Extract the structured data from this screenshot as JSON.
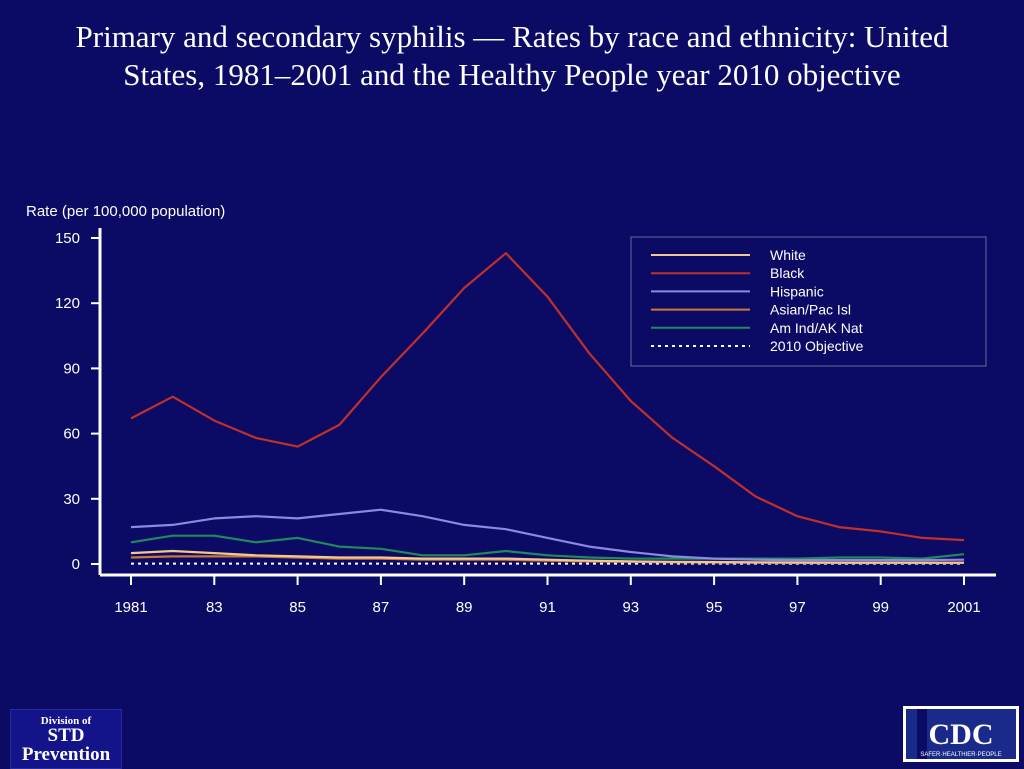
{
  "title": "Primary and secondary syphilis — Rates by race and ethnicity: United States, 1981–2001 and the Healthy People year 2010 objective",
  "logos": {
    "left": [
      "Division of",
      "STD",
      "Prevention"
    ],
    "right": "CDC",
    "right_tagline": "SAFER·HEALTHIER·PEOPLE"
  },
  "colors": {
    "background": "#0b0b66",
    "White": "#f2c890",
    "Black": "#c0302a",
    "Hispanic": "#8a8ae0",
    "Asian/Pac Isl": "#c87838",
    "Am Ind/AK Nat": "#1f8a5a",
    "2010 Objective": "#ffffff"
  },
  "chart_data": {
    "type": "line",
    "title": "",
    "xlabel": "",
    "ylabel": "Rate (per 100,000 population)",
    "x": [
      1981,
      1982,
      1983,
      1984,
      1985,
      1986,
      1987,
      1988,
      1989,
      1990,
      1991,
      1992,
      1993,
      1994,
      1995,
      1996,
      1997,
      1998,
      1999,
      2000,
      2001
    ],
    "x_tick_values": [
      1981,
      1983,
      1985,
      1987,
      1989,
      1991,
      1993,
      1995,
      1997,
      1999,
      2001
    ],
    "x_tick_labels": [
      "1981",
      "83",
      "85",
      "87",
      "89",
      "91",
      "93",
      "95",
      "97",
      "99",
      "2001"
    ],
    "y_ticks": [
      0,
      30,
      60,
      90,
      120,
      150
    ],
    "ylim": [
      0,
      150
    ],
    "xlim": [
      1981,
      2001
    ],
    "grid": false,
    "legend_position": "top-right",
    "series": [
      {
        "name": "White",
        "values": [
          5,
          6,
          5,
          4,
          3.5,
          3,
          3,
          2.5,
          2.5,
          2.5,
          2,
          1.5,
          1.2,
          1,
          0.9,
          0.8,
          0.7,
          0.6,
          0.6,
          0.6,
          0.6
        ]
      },
      {
        "name": "Black",
        "values": [
          67,
          77,
          66,
          58,
          54,
          64,
          86,
          106,
          127,
          143,
          123,
          97,
          75,
          58,
          45,
          31,
          22,
          17,
          15,
          12,
          11
        ]
      },
      {
        "name": "Hispanic",
        "values": [
          17,
          18,
          21,
          22,
          21,
          23,
          25,
          22,
          18,
          16,
          12,
          8,
          5.5,
          3.5,
          2.5,
          2,
          1.8,
          1.8,
          1.8,
          1.8,
          2
        ]
      },
      {
        "name": "Asian/Pac Isl",
        "values": [
          3,
          3.5,
          3.5,
          3.5,
          3,
          2.5,
          2.5,
          2,
          2,
          2,
          1.5,
          1.2,
          1,
          0.8,
          0.7,
          0.6,
          0.5,
          0.5,
          0.5,
          0.5,
          0.5
        ]
      },
      {
        "name": "Am Ind/AK Nat",
        "values": [
          10,
          13,
          13,
          10,
          12,
          8,
          7,
          4,
          4,
          6,
          4,
          3,
          2.5,
          2.5,
          2.5,
          2.5,
          2.5,
          3,
          3,
          2.5,
          4.5
        ]
      },
      {
        "name": "2010 Objective",
        "values": [
          0.2,
          0.2,
          0.2,
          0.2,
          0.2,
          0.2,
          0.2,
          0.2,
          0.2,
          0.2,
          0.2,
          0.2,
          0.2,
          0.2,
          0.2,
          0.2,
          0.2,
          0.2,
          0.2,
          0.2,
          0.2
        ],
        "dashed": true
      }
    ]
  }
}
